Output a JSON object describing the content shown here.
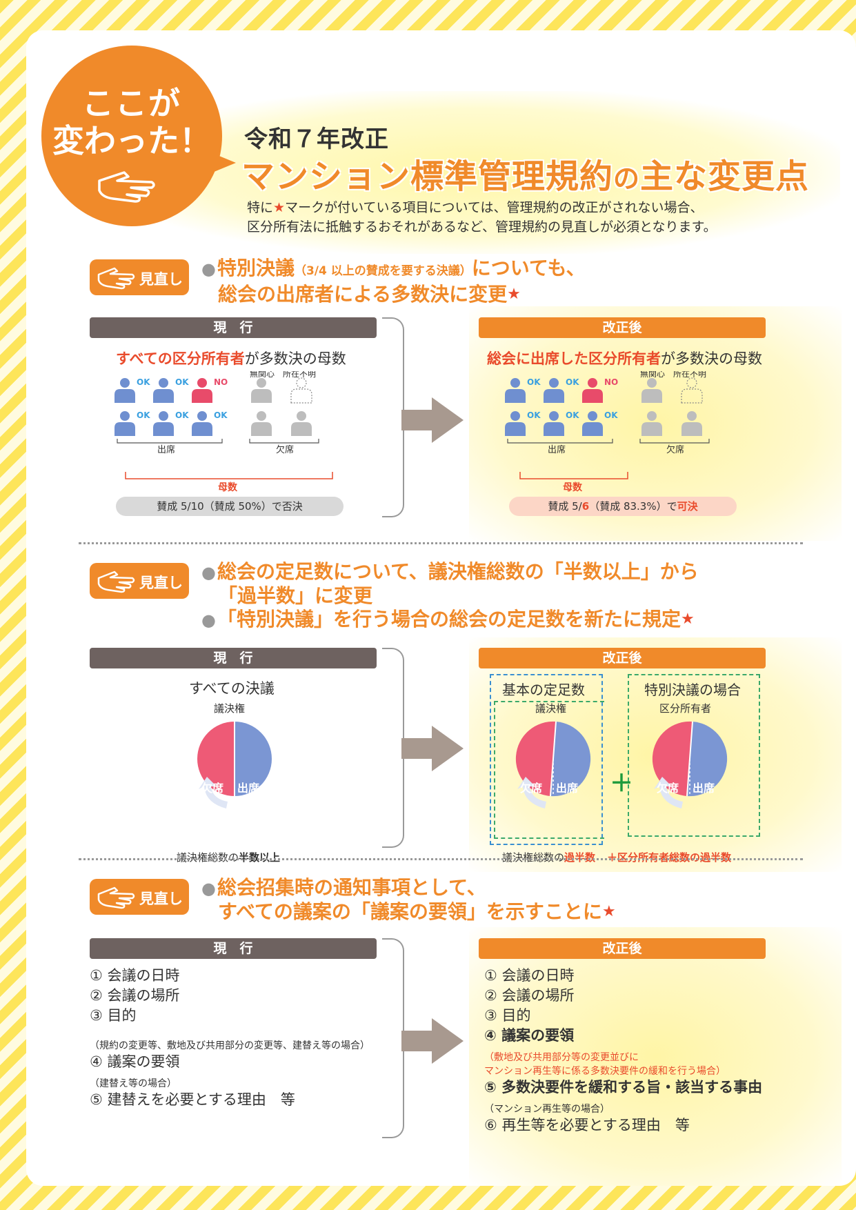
{
  "header": {
    "badge_line1": "ここが",
    "badge_line2": "変わった！",
    "subtitle": "令和７年改正",
    "title_a": "マンション標準管理規約",
    "title_b": "の",
    "title_c": "主な変更点",
    "intro_line1_a": "特に",
    "intro_star": "★",
    "intro_line1_b": "マークが付いている項目については、管理規約の改正がされない場合、",
    "intro_line2": "区分所有法に抵触するおそれがあるなど、管理規約の見直しが必須となります。"
  },
  "common": {
    "review_label": "見直し",
    "current_label": "現　行",
    "revised_label": "改正後",
    "star": "★",
    "bullet": "●"
  },
  "section1": {
    "headline_a": "特別決議",
    "headline_small": "（3/4 以上の賛成を要する決議）",
    "headline_b": "についても、",
    "headline_line2": "総会の出席者による多数決に変更",
    "current": {
      "caption_red": "すべての区分所有者",
      "caption_rest": "が多数決の母数",
      "result": "賛成 5/10（賛成 50%）で否決"
    },
    "revised": {
      "caption_red": "総会に出席した区分所有者",
      "caption_rest": "が多数決の母数",
      "result_a": "賛成 5/",
      "result_b": "6",
      "result_c": "（賛成 83.3%）で",
      "result_d": "可決"
    },
    "ok": "OK",
    "no": "NO",
    "label_indifferent": "無関心",
    "label_unknown": "所在不明",
    "label_present": "出席",
    "label_absent": "欠席",
    "label_base": "母数"
  },
  "section2": {
    "headline_line1": "総会の定足数について、議決権総数の「半数以上」から",
    "headline_line2": "「過半数」に変更",
    "headline_line3": "「特別決議」を行う場合の総会の定足数を新たに規定",
    "current": {
      "title": "すべての決議",
      "pie_label": "議決権",
      "absent": "欠席",
      "present": "出席",
      "note_a": "議決権総数の",
      "note_b": "半数以上"
    },
    "revised": {
      "basic_title": "基本の定足数",
      "special_title": "特別決議の場合",
      "pie1_label": "議決権",
      "pie2_label": "区分所有者",
      "absent": "欠席",
      "present": "出席",
      "plus": "＋",
      "note1_a": "議決権総数の",
      "note1_b": "過半数",
      "note2": "＋区分所有者総数の過半数"
    }
  },
  "section3": {
    "headline_line1": "総会招集時の通知事項として、",
    "headline_line2": "すべての議案の「議案の要領」を示すことに",
    "current": {
      "item1": "① 会議の日時",
      "item2": "② 会議の場所",
      "item3": "③ 目的",
      "note4": "（規約の変更等、敷地及び共用部分の変更等、建替え等の場合）",
      "item4": "④ 議案の要領",
      "note5": "（建替え等の場合）",
      "item5": "⑤ 建替えを必要とする理由　等"
    },
    "revised": {
      "item1": "① 会議の日時",
      "item2": "② 会議の場所",
      "item3": "③ 目的",
      "item4": "④ 議案の要領",
      "note5_line1": "（敷地及び共用部分等の変更並びに",
      "note5_line2": "マンション再生等に係る多数決要件の緩和を行う場合）",
      "item5": "⑤ 多数決要件を緩和する旨・該当する事由",
      "note6": "（マンション再生等の場合）",
      "item6": "⑥ 再生等を必要とする理由　等"
    }
  },
  "colors": {
    "orange": "#f08a2a",
    "red": "#e94b2c",
    "blue_person": "#6f8fd0",
    "red_person": "#e84b6a",
    "gray_person": "#bdbdbd",
    "pie_red": "#ee5a76",
    "pie_blue": "#7b96d3"
  }
}
